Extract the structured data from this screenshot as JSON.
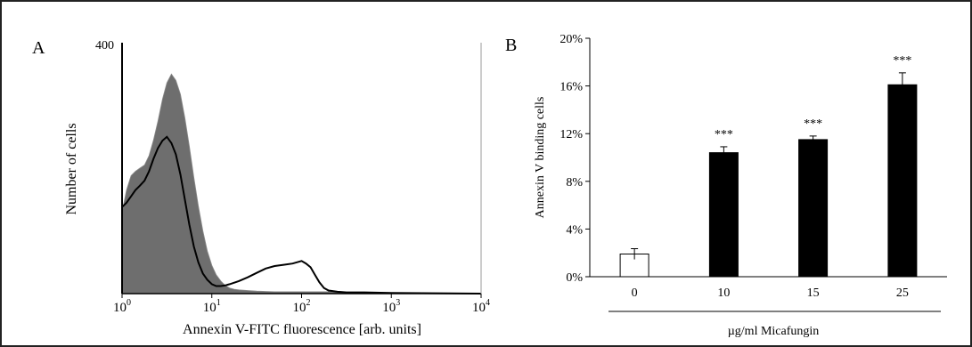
{
  "panels": {
    "a_label": "A",
    "b_label": "B"
  },
  "chart_data": [
    {
      "type": "area",
      "panel": "A",
      "xlabel": "Annexin V-FITC fluorescence [arb. units]",
      "ylabel": "Number of cells",
      "x_scale": "log",
      "xlim": [
        1,
        10000
      ],
      "ylim": [
        0,
        400
      ],
      "x_ticks": [
        {
          "base": "10",
          "exp": "0",
          "value": 1
        },
        {
          "base": "10",
          "exp": "1",
          "value": 10
        },
        {
          "base": "10",
          "exp": "2",
          "value": 100
        },
        {
          "base": "10",
          "exp": "3",
          "value": 1000
        },
        {
          "base": "10",
          "exp": "4",
          "value": 10000
        }
      ],
      "y_top_label": "400",
      "series": [
        {
          "style": "filled-gray",
          "color": "#6e6e6e",
          "x": [
            1,
            1.12,
            1.26,
            1.41,
            1.58,
            1.78,
            2.0,
            2.24,
            2.51,
            2.82,
            3.16,
            3.55,
            3.98,
            4.47,
            5.01,
            5.62,
            6.31,
            7.08,
            7.94,
            8.91,
            10,
            11.2,
            12.6,
            14.1,
            15.8,
            17.8,
            20,
            25.1,
            31.6,
            50,
            100,
            200,
            316,
            1000,
            10000
          ],
          "values": [
            130,
            165,
            188,
            195,
            200,
            205,
            220,
            245,
            275,
            310,
            336,
            350,
            340,
            318,
            280,
            235,
            185,
            140,
            100,
            68,
            45,
            30,
            20,
            13,
            9,
            7,
            6,
            5,
            4,
            3,
            3,
            3,
            2,
            1,
            0
          ]
        },
        {
          "style": "line-black",
          "color": "#000000",
          "x": [
            1,
            1.12,
            1.26,
            1.41,
            1.58,
            1.78,
            2.0,
            2.24,
            2.51,
            2.82,
            3.16,
            3.55,
            3.98,
            4.47,
            5.01,
            5.62,
            6.31,
            7.08,
            7.94,
            8.91,
            10,
            11.2,
            12.6,
            14.1,
            15.8,
            20,
            25.1,
            31.6,
            39.8,
            50,
            63.1,
            79.4,
            100,
            112,
            126,
            141,
            158,
            178,
            200,
            251,
            316,
            500,
            1000,
            10000
          ],
          "values": [
            138,
            145,
            155,
            165,
            172,
            180,
            195,
            215,
            232,
            244,
            250,
            240,
            222,
            190,
            150,
            110,
            75,
            50,
            32,
            22,
            15,
            12,
            12,
            13,
            15,
            20,
            26,
            33,
            40,
            44,
            46,
            48,
            52,
            48,
            42,
            30,
            18,
            9,
            5,
            3,
            2,
            2,
            1,
            0
          ]
        }
      ]
    },
    {
      "type": "bar",
      "panel": "B",
      "xlabel": "µg/ml Micafungin",
      "ylabel": "Annexin V binding cells",
      "categories": [
        "0",
        "10",
        "15",
        "25"
      ],
      "values": [
        1.9,
        10.4,
        11.5,
        16.1
      ],
      "errors": [
        0.45,
        0.5,
        0.3,
        1.0
      ],
      "significance": [
        "",
        "***",
        "***",
        "***"
      ],
      "bar_colors": [
        "#ffffff",
        "#000000",
        "#000000",
        "#000000"
      ],
      "ylim": [
        0,
        20
      ],
      "y_ticks": [
        "0%",
        "4%",
        "8%",
        "12%",
        "16%",
        "20%"
      ],
      "y_tick_values": [
        0,
        4,
        8,
        12,
        16,
        20
      ],
      "grid": false
    }
  ]
}
